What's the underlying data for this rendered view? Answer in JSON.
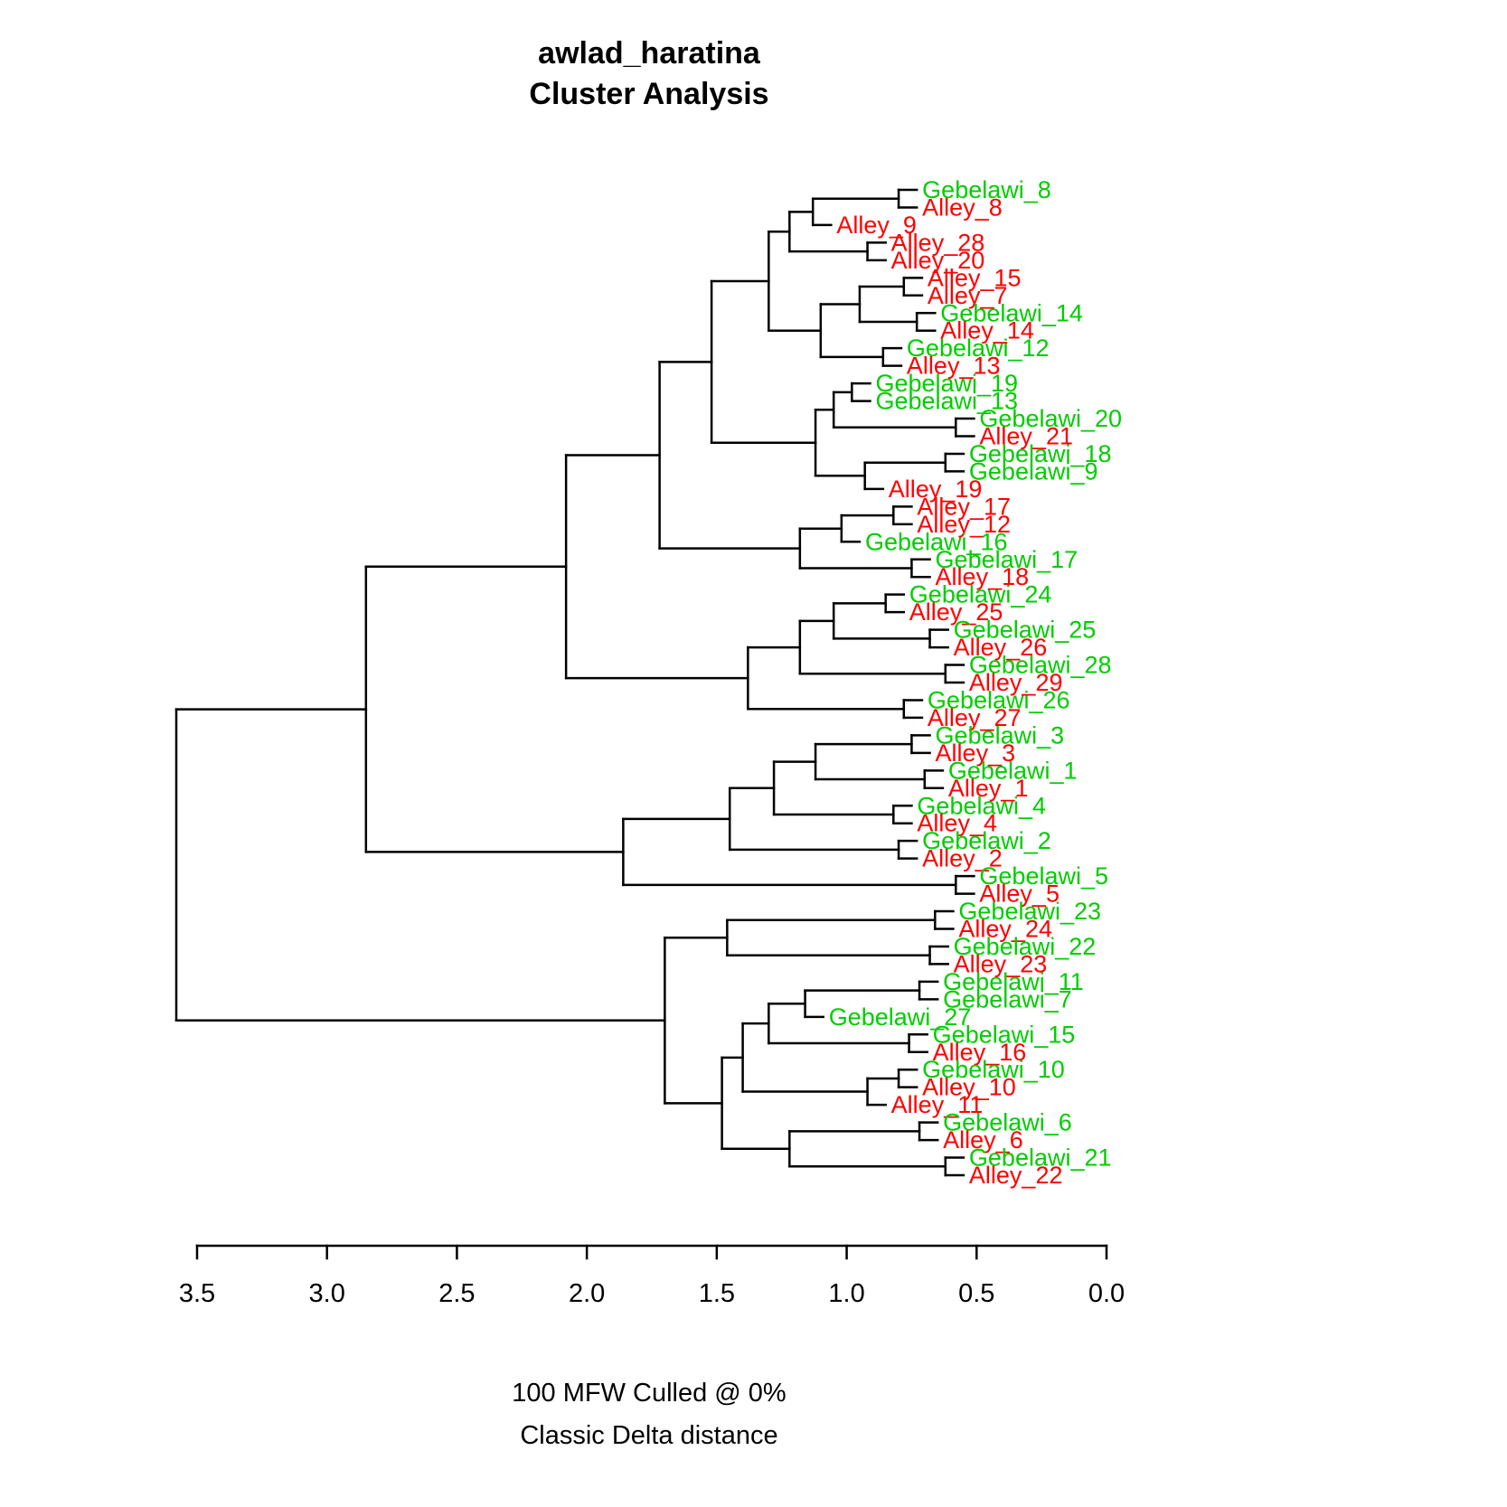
{
  "chart_data": {
    "type": "dendrogram",
    "title_line1": "awlad_haratina",
    "title_line2": "Cluster Analysis",
    "caption_line1": "100 MFW  Culled @ 0%",
    "caption_line2": "Classic Delta distance",
    "orientation": "horizontal-root-left",
    "axis": {
      "range": [
        0,
        3.5
      ],
      "ticks": [
        "3.5",
        "3.0",
        "2.5",
        "2.0",
        "1.5",
        "1.0",
        "0.5",
        "0.0"
      ]
    },
    "series_colors": {
      "Gebelawi": "#00cd00",
      "Alley": "#ff0000"
    },
    "line_color": "#000000",
    "leaf_order": [
      "Gebelawi_8",
      "Alley_8",
      "Alley_9",
      "Alley_28",
      "Alley_20",
      "Alley_15",
      "Alley_7",
      "Gebelawi_14",
      "Alley_14",
      "Gebelawi_12",
      "Alley_13",
      "Gebelawi_19",
      "Gebelawi_13",
      "Gebelawi_20",
      "Alley_21",
      "Gebelawi_18",
      "Gebelawi_9",
      "Alley_19",
      "Alley_17",
      "Alley_12",
      "Gebelawi_16",
      "Gebelawi_17",
      "Alley_18",
      "Gebelawi_24",
      "Alley_25",
      "Gebelawi_25",
      "Alley_26",
      "Gebelawi_28",
      "Alley_29",
      "Gebelawi_26",
      "Alley_27",
      "Gebelawi_3",
      "Alley_3",
      "Gebelawi_1",
      "Alley_1",
      "Gebelawi_4",
      "Alley_4",
      "Gebelawi_2",
      "Alley_2",
      "Gebelawi_5",
      "Alley_5",
      "Gebelawi_23",
      "Alley_24",
      "Gebelawi_22",
      "Alley_23",
      "Gebelawi_11",
      "Gebelawi_7",
      "Gebelawi_27",
      "Gebelawi_15",
      "Alley_16",
      "Gebelawi_10",
      "Alley_10",
      "Alley_11",
      "Gebelawi_6",
      "Alley_6",
      "Gebelawi_21",
      "Alley_22"
    ],
    "tree": {
      "h": 3.58,
      "c": [
        {
          "h": 2.85,
          "c": [
            {
              "h": 2.08,
              "c": [
                {
                  "h": 1.72,
                  "c": [
                    {
                      "h": 1.52,
                      "c": [
                        {
                          "h": 1.3,
                          "c": [
                            {
                              "h": 1.22,
                              "c": [
                                {
                                  "h": 1.13,
                                  "c": [
                                    {
                                      "h": 0.8,
                                      "c": [
                                        "Gebelawi_8",
                                        "Alley_8"
                                      ]
                                    },
                                    "Alley_9"
                                  ]
                                },
                                {
                                  "h": 0.92,
                                  "c": [
                                    "Alley_28",
                                    "Alley_20"
                                  ]
                                }
                              ]
                            },
                            {
                              "h": 1.1,
                              "c": [
                                {
                                  "h": 0.95,
                                  "c": [
                                    {
                                      "h": 0.78,
                                      "c": [
                                        "Alley_15",
                                        "Alley_7"
                                      ]
                                    },
                                    {
                                      "h": 0.73,
                                      "c": [
                                        "Gebelawi_14",
                                        "Alley_14"
                                      ]
                                    }
                                  ]
                                },
                                {
                                  "h": 0.86,
                                  "c": [
                                    "Gebelawi_12",
                                    "Alley_13"
                                  ]
                                }
                              ]
                            }
                          ]
                        },
                        {
                          "h": 1.12,
                          "c": [
                            {
                              "h": 1.05,
                              "c": [
                                {
                                  "h": 0.98,
                                  "c": [
                                    "Gebelawi_19",
                                    "Gebelawi_13"
                                  ]
                                },
                                {
                                  "h": 0.58,
                                  "c": [
                                    "Gebelawi_20",
                                    "Alley_21"
                                  ]
                                }
                              ]
                            },
                            {
                              "h": 0.93,
                              "c": [
                                {
                                  "h": 0.62,
                                  "c": [
                                    "Gebelawi_18",
                                    "Gebelawi_9"
                                  ]
                                },
                                "Alley_19"
                              ]
                            }
                          ]
                        }
                      ]
                    },
                    {
                      "h": 1.18,
                      "c": [
                        {
                          "h": 1.02,
                          "c": [
                            {
                              "h": 0.82,
                              "c": [
                                "Alley_17",
                                "Alley_12"
                              ]
                            },
                            "Gebelawi_16"
                          ]
                        },
                        {
                          "h": 0.75,
                          "c": [
                            "Gebelawi_17",
                            "Alley_18"
                          ]
                        }
                      ]
                    }
                  ]
                },
                {
                  "h": 1.38,
                  "c": [
                    {
                      "h": 1.18,
                      "c": [
                        {
                          "h": 1.05,
                          "c": [
                            {
                              "h": 0.85,
                              "c": [
                                "Gebelawi_24",
                                "Alley_25"
                              ]
                            },
                            {
                              "h": 0.68,
                              "c": [
                                "Gebelawi_25",
                                "Alley_26"
                              ]
                            }
                          ]
                        },
                        {
                          "h": 0.62,
                          "c": [
                            "Gebelawi_28",
                            "Alley_29"
                          ]
                        }
                      ]
                    },
                    {
                      "h": 0.78,
                      "c": [
                        "Gebelawi_26",
                        "Alley_27"
                      ]
                    }
                  ]
                }
              ]
            },
            {
              "h": 1.86,
              "c": [
                {
                  "h": 1.45,
                  "c": [
                    {
                      "h": 1.28,
                      "c": [
                        {
                          "h": 1.12,
                          "c": [
                            {
                              "h": 0.75,
                              "c": [
                                "Gebelawi_3",
                                "Alley_3"
                              ]
                            },
                            {
                              "h": 0.7,
                              "c": [
                                "Gebelawi_1",
                                "Alley_1"
                              ]
                            }
                          ]
                        },
                        {
                          "h": 0.82,
                          "c": [
                            "Gebelawi_4",
                            "Alley_4"
                          ]
                        }
                      ]
                    },
                    {
                      "h": 0.8,
                      "c": [
                        "Gebelawi_2",
                        "Alley_2"
                      ]
                    }
                  ]
                },
                {
                  "h": 0.58,
                  "c": [
                    "Gebelawi_5",
                    "Alley_5"
                  ]
                }
              ]
            }
          ]
        },
        {
          "h": 1.7,
          "c": [
            {
              "h": 1.46,
              "c": [
                {
                  "h": 0.66,
                  "c": [
                    "Gebelawi_23",
                    "Alley_24"
                  ]
                },
                {
                  "h": 0.68,
                  "c": [
                    "Gebelawi_22",
                    "Alley_23"
                  ]
                }
              ]
            },
            {
              "h": 1.48,
              "c": [
                {
                  "h": 1.4,
                  "c": [
                    {
                      "h": 1.3,
                      "c": [
                        {
                          "h": 1.16,
                          "c": [
                            {
                              "h": 0.72,
                              "c": [
                                "Gebelawi_11",
                                "Gebelawi_7"
                              ]
                            },
                            "Gebelawi_27"
                          ]
                        },
                        {
                          "h": 0.76,
                          "c": [
                            "Gebelawi_15",
                            "Alley_16"
                          ]
                        }
                      ]
                    },
                    {
                      "h": 0.92,
                      "c": [
                        {
                          "h": 0.8,
                          "c": [
                            "Gebelawi_10",
                            "Alley_10"
                          ]
                        },
                        "Alley_11"
                      ]
                    }
                  ]
                },
                {
                  "h": 1.22,
                  "c": [
                    {
                      "h": 0.72,
                      "c": [
                        "Gebelawi_6",
                        "Alley_6"
                      ]
                    },
                    {
                      "h": 0.62,
                      "c": [
                        "Gebelawi_21",
                        "Alley_22"
                      ]
                    }
                  ]
                }
              ]
            }
          ]
        }
      ]
    }
  }
}
